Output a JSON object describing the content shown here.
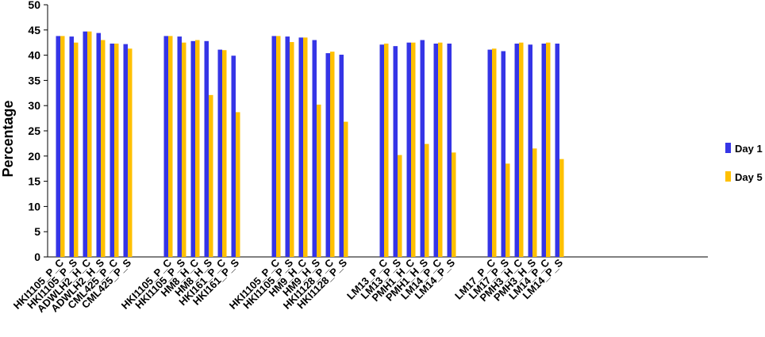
{
  "chart_data": {
    "type": "bar",
    "title": "",
    "xlabel": "",
    "ylabel": "Percentage",
    "ylim": [
      0,
      50
    ],
    "yticks": [
      0,
      5,
      10,
      15,
      20,
      25,
      30,
      35,
      40,
      45,
      50
    ],
    "grid": false,
    "legend_position": "right",
    "colors": {
      "Day 1": "#3535e6",
      "Day 5": "#ffc000"
    },
    "groups": [
      {
        "categories": [
          "HKI1105_P_C",
          "HKI1105_P_S",
          "ADWLH2_H_C",
          "ADWLH2_H_S",
          "CML425_P_C",
          "CML425_P_S"
        ]
      },
      {
        "categories": [
          "HKI1105_P_C",
          "HKI1105_P_S",
          "HM8_H_C",
          "HM8_H_S",
          "HKI161_P_C",
          "HKI161_P_S"
        ]
      },
      {
        "categories": [
          "HKI1105_P_C",
          "HKI1105_P_S",
          "HM9_H_C",
          "HM9_H_S",
          "HKI1128_P_C",
          "HKI1128_P_S"
        ]
      },
      {
        "categories": [
          "LM13_P_C",
          "LM13_P_S",
          "PMH1_H_C",
          "PMH1_H_S",
          "LM14_P_C",
          "LM14_P_S"
        ]
      },
      {
        "categories": [
          "LM17_P_C",
          "LM17_P_S",
          "PMH3_H_C",
          "PMH3_H_S",
          "LM14_P_C",
          "LM14_P_S"
        ]
      }
    ],
    "series": [
      {
        "name": "Day 1",
        "values": [
          [
            43.8,
            43.7,
            44.7,
            44.4,
            42.3,
            42.2
          ],
          [
            43.8,
            43.7,
            42.8,
            42.8,
            41.1,
            39.9
          ],
          [
            43.8,
            43.7,
            43.5,
            43.0,
            40.4,
            40.1
          ],
          [
            42.1,
            41.8,
            42.5,
            43.0,
            42.3,
            42.3
          ],
          [
            41.1,
            40.8,
            42.3,
            42.1,
            42.3,
            42.3
          ]
        ]
      },
      {
        "name": "Day 5",
        "values": [
          [
            43.8,
            42.5,
            44.7,
            43.0,
            42.3,
            41.3
          ],
          [
            43.8,
            42.5,
            43.0,
            32.1,
            41.0,
            28.7
          ],
          [
            43.8,
            42.6,
            43.5,
            30.2,
            40.7,
            26.8
          ],
          [
            42.3,
            20.2,
            42.5,
            22.4,
            42.5,
            20.7
          ],
          [
            41.3,
            18.5,
            42.5,
            21.5,
            42.5,
            19.4
          ]
        ]
      }
    ]
  }
}
